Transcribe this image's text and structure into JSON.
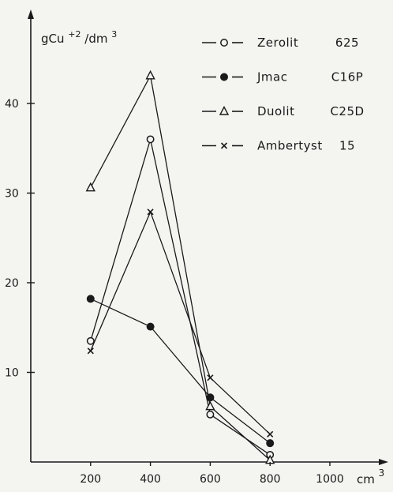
{
  "chart_data": {
    "type": "line",
    "title": "",
    "ylabel_parts": {
      "base": "gCu",
      "sup1": "+2",
      "mid": "/dm",
      "sup2": "3"
    },
    "xlabel_parts": {
      "base": "cm",
      "sup": "3"
    },
    "x_ticks": [
      "200",
      "400",
      "600",
      "800",
      "1000"
    ],
    "y_ticks": [
      "10",
      "20",
      "30",
      "40"
    ],
    "xlim": [
      0,
      1050
    ],
    "ylim": [
      0,
      50
    ],
    "grid": false,
    "legend_position": "top-right",
    "series": [
      {
        "name": "Zerolit",
        "code": "625",
        "marker": "circle-open",
        "x": [
          200,
          400,
          600,
          800
        ],
        "y": [
          13.5,
          36,
          5.3,
          0.8
        ]
      },
      {
        "name": "Jmac",
        "code": "C16P",
        "marker": "circle-filled",
        "x": [
          200,
          400,
          600,
          800
        ],
        "y": [
          18.2,
          15.1,
          7.2,
          2.1
        ]
      },
      {
        "name": "Duolit",
        "code": "C25D",
        "marker": "triangle-open",
        "x": [
          200,
          400,
          600,
          800
        ],
        "y": [
          30.6,
          43.1,
          6.2,
          0.2
        ]
      },
      {
        "name": "Ambertyst",
        "code": "15",
        "marker": "cross",
        "x": [
          200,
          400,
          600,
          800
        ],
        "y": [
          12.4,
          27.9,
          9.4,
          3.1
        ]
      }
    ]
  }
}
